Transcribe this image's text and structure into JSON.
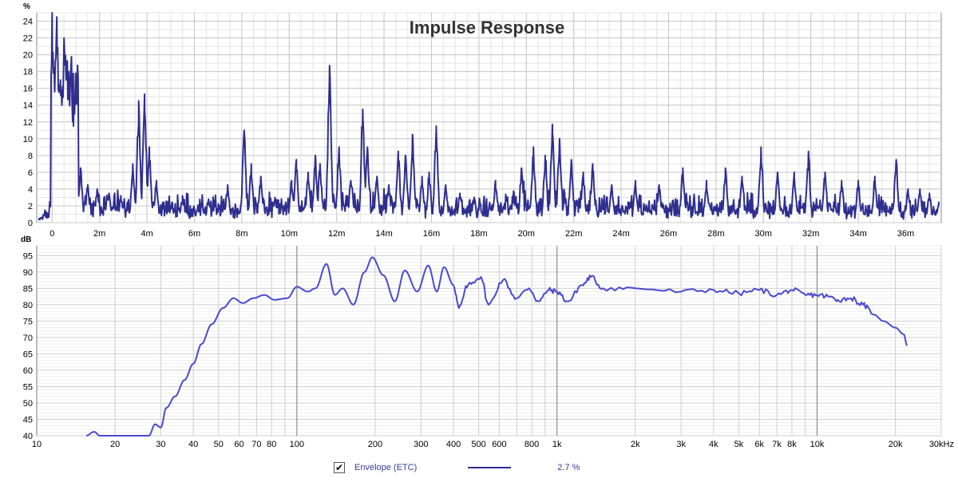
{
  "title": "Impulse Response",
  "legend": {
    "checked": true,
    "check_glyph": "✔",
    "label": "Envelope (ETC)",
    "value": "2.7 %",
    "line_color": "#2e2e8e"
  },
  "chart_data": [
    {
      "type": "line",
      "title": "Impulse Response",
      "ylabel": "%",
      "xlabel": "",
      "xlim": [
        -0.00065,
        0.0375
      ],
      "ylim": [
        0,
        25
      ],
      "yticks": [
        0,
        2,
        4,
        6,
        8,
        10,
        12,
        14,
        16,
        18,
        20,
        22,
        24
      ],
      "xticks": [
        0,
        0.002,
        0.004,
        0.006,
        0.008,
        0.01,
        0.012,
        0.014,
        0.016,
        0.018,
        0.02,
        0.022,
        0.024,
        0.026,
        0.028,
        0.03,
        0.032,
        0.034,
        0.036
      ],
      "xtick_labels": [
        "0",
        "2m",
        "4m",
        "6m",
        "8m",
        "10m",
        "12m",
        "14m",
        "16m",
        "18m",
        "20m",
        "22m",
        "24m",
        "26m",
        "28m",
        "30m",
        "32m",
        "34m",
        "36m"
      ],
      "grid": true,
      "color": "#2e2e8e",
      "series": [
        {
          "peaks": [
            [
              -0.00055,
              0.5
            ],
            [
              -0.0003,
              1.5
            ],
            [
              -0.0001,
              2.5
            ],
            [
              0.0,
              25.0
            ],
            [
              0.0002,
              24.5
            ],
            [
              0.00035,
              17.0
            ],
            [
              0.0005,
              22.0
            ],
            [
              0.0007,
              18.0
            ],
            [
              0.0009,
              11.5
            ],
            [
              0.0012,
              6.5
            ],
            [
              0.0015,
              4.5
            ],
            [
              0.0019,
              4.0
            ],
            [
              0.0024,
              3.5
            ],
            [
              0.0029,
              3.2
            ],
            [
              0.0034,
              7.0
            ],
            [
              0.00365,
              14.5
            ],
            [
              0.0039,
              15.3
            ],
            [
              0.0041,
              9.0
            ],
            [
              0.0044,
              5.0
            ],
            [
              0.0055,
              3.2
            ],
            [
              0.0066,
              2.8
            ],
            [
              0.0074,
              4.5
            ],
            [
              0.0081,
              11.0
            ],
            [
              0.0084,
              7.0
            ],
            [
              0.0088,
              5.5
            ],
            [
              0.0094,
              3.0
            ],
            [
              0.0101,
              5.0
            ],
            [
              0.0103,
              7.5
            ],
            [
              0.0108,
              6.0
            ],
            [
              0.0111,
              8.0
            ],
            [
              0.0113,
              7.0
            ],
            [
              0.0117,
              18.7
            ],
            [
              0.0121,
              9.0
            ],
            [
              0.0126,
              5.0
            ],
            [
              0.0131,
              13.5
            ],
            [
              0.0133,
              9.0
            ],
            [
              0.0137,
              5.5
            ],
            [
              0.0142,
              4.5
            ],
            [
              0.0146,
              8.5
            ],
            [
              0.0149,
              8.0
            ],
            [
              0.0152,
              10.5
            ],
            [
              0.0156,
              5.5
            ],
            [
              0.0159,
              6.0
            ],
            [
              0.0162,
              11.5
            ],
            [
              0.0166,
              4.5
            ],
            [
              0.0172,
              3.5
            ],
            [
              0.0178,
              3.0
            ],
            [
              0.0187,
              5.0
            ],
            [
              0.0198,
              6.5
            ],
            [
              0.0203,
              9.0
            ],
            [
              0.0208,
              8.0
            ],
            [
              0.0211,
              11.7
            ],
            [
              0.0214,
              10.0
            ],
            [
              0.0219,
              7.5
            ],
            [
              0.0224,
              6.0
            ],
            [
              0.0228,
              7.0
            ],
            [
              0.0236,
              4.5
            ],
            [
              0.0246,
              5.0
            ],
            [
              0.0256,
              4.5
            ],
            [
              0.0266,
              6.5
            ],
            [
              0.0276,
              5.0
            ],
            [
              0.0284,
              6.5
            ],
            [
              0.0291,
              5.5
            ],
            [
              0.0299,
              9.0
            ],
            [
              0.0306,
              6.0
            ],
            [
              0.0313,
              6.0
            ],
            [
              0.0319,
              8.5
            ],
            [
              0.0326,
              6.0
            ],
            [
              0.0333,
              5.0
            ],
            [
              0.034,
              5.0
            ],
            [
              0.0347,
              5.5
            ],
            [
              0.0356,
              7.5
            ],
            [
              0.0361,
              4.0
            ],
            [
              0.0366,
              4.0
            ],
            [
              0.037,
              3.5
            ],
            [
              0.0374,
              2.5
            ]
          ],
          "base_level": [
            [
              0.0,
              2.0
            ],
            [
              0.003,
              2.0
            ],
            [
              0.008,
              1.8
            ],
            [
              0.012,
              2.2
            ],
            [
              0.018,
              1.6
            ],
            [
              0.02,
              2.5
            ],
            [
              0.024,
              1.8
            ],
            [
              0.03,
              1.8
            ],
            [
              0.037,
              1.6
            ]
          ]
        }
      ]
    },
    {
      "type": "line",
      "ylabel": "dB",
      "xlabel": "",
      "xscale": "log",
      "xlim": [
        10,
        30000
      ],
      "ylim": [
        40,
        98
      ],
      "yticks": [
        40,
        45,
        50,
        55,
        60,
        65,
        70,
        75,
        80,
        85,
        90,
        95
      ],
      "xticks": [
        10,
        20,
        30,
        40,
        50,
        60,
        70,
        80,
        100,
        200,
        300,
        400,
        500,
        600,
        800,
        1000,
        2000,
        3000,
        4000,
        5000,
        6000,
        7000,
        8000,
        10000,
        20000,
        30000
      ],
      "xtick_labels": [
        "10",
        "20",
        "30",
        "40",
        "50",
        "60",
        "70",
        "80",
        "100",
        "200",
        "300",
        "400",
        "500",
        "600",
        "800",
        "1k",
        "2k",
        "3k",
        "4k",
        "5k",
        "6k",
        "7k",
        "8k",
        "10k",
        "20k",
        "30kHz"
      ],
      "grid": true,
      "color": "#4a4ad0",
      "series": [
        {
          "points": [
            [
              15.5,
              40.0
            ],
            [
              16.6,
              41.2
            ],
            [
              17.5,
              40.0
            ],
            [
              27.0,
              40.0
            ],
            [
              28.5,
              43.5
            ],
            [
              30.0,
              42.5
            ],
            [
              31.5,
              48.5
            ],
            [
              34.0,
              52.0
            ],
            [
              37.0,
              57.0
            ],
            [
              40.0,
              62.0
            ],
            [
              43.0,
              68.0
            ],
            [
              47.0,
              74.0
            ],
            [
              52.0,
              79.0
            ],
            [
              57.0,
              82.0
            ],
            [
              62.0,
              80.5
            ],
            [
              68.0,
              82.0
            ],
            [
              75.0,
              83.0
            ],
            [
              82.0,
              81.5
            ],
            [
              92.0,
              82.0
            ],
            [
              100.0,
              85.5
            ],
            [
              110.0,
              84.0
            ],
            [
              118.0,
              85.0
            ],
            [
              130.0,
              92.5
            ],
            [
              140.0,
              83.0
            ],
            [
              150.0,
              85.0
            ],
            [
              165.0,
              80.0
            ],
            [
              182.0,
              90.0
            ],
            [
              195.0,
              94.5
            ],
            [
              215.0,
              89.0
            ],
            [
              238.0,
              81.0
            ],
            [
              260.0,
              90.5
            ],
            [
              290.0,
              84.0
            ],
            [
              320.0,
              92.0
            ],
            [
              345.0,
              84.0
            ],
            [
              368.0,
              91.5
            ],
            [
              400.0,
              86.0
            ],
            [
              420.0,
              79.0
            ],
            [
              455.0,
              86.0
            ],
            [
              510.0,
              88.5
            ],
            [
              545.0,
              80.0
            ],
            [
              620.0,
              87.5
            ],
            [
              700.0,
              82.0
            ],
            [
              780.0,
              85.0
            ],
            [
              850.0,
              81.0
            ],
            [
              930.0,
              84.5
            ],
            [
              1000.0,
              84.0
            ],
            [
              1100.0,
              81.0
            ],
            [
              1250.0,
              86.0
            ],
            [
              1350.0,
              88.5
            ],
            [
              1500.0,
              85.0
            ],
            [
              2000.0,
              85.0
            ],
            [
              3000.0,
              84.0
            ],
            [
              4000.0,
              84.5
            ],
            [
              5000.0,
              83.5
            ],
            [
              6000.0,
              84.5
            ],
            [
              7000.0,
              83.0
            ],
            [
              8000.0,
              84.5
            ],
            [
              9000.0,
              83.0
            ],
            [
              10000.0,
              83.0
            ],
            [
              11000.0,
              82.5
            ],
            [
              12000.0,
              81.5
            ],
            [
              13500.0,
              82.0
            ],
            [
              15000.0,
              80.0
            ],
            [
              16500.0,
              77.0
            ],
            [
              18000.0,
              75.0
            ],
            [
              20000.0,
              73.0
            ],
            [
              21500.0,
              71.0
            ],
            [
              22200.0,
              67.5
            ]
          ]
        }
      ]
    }
  ]
}
